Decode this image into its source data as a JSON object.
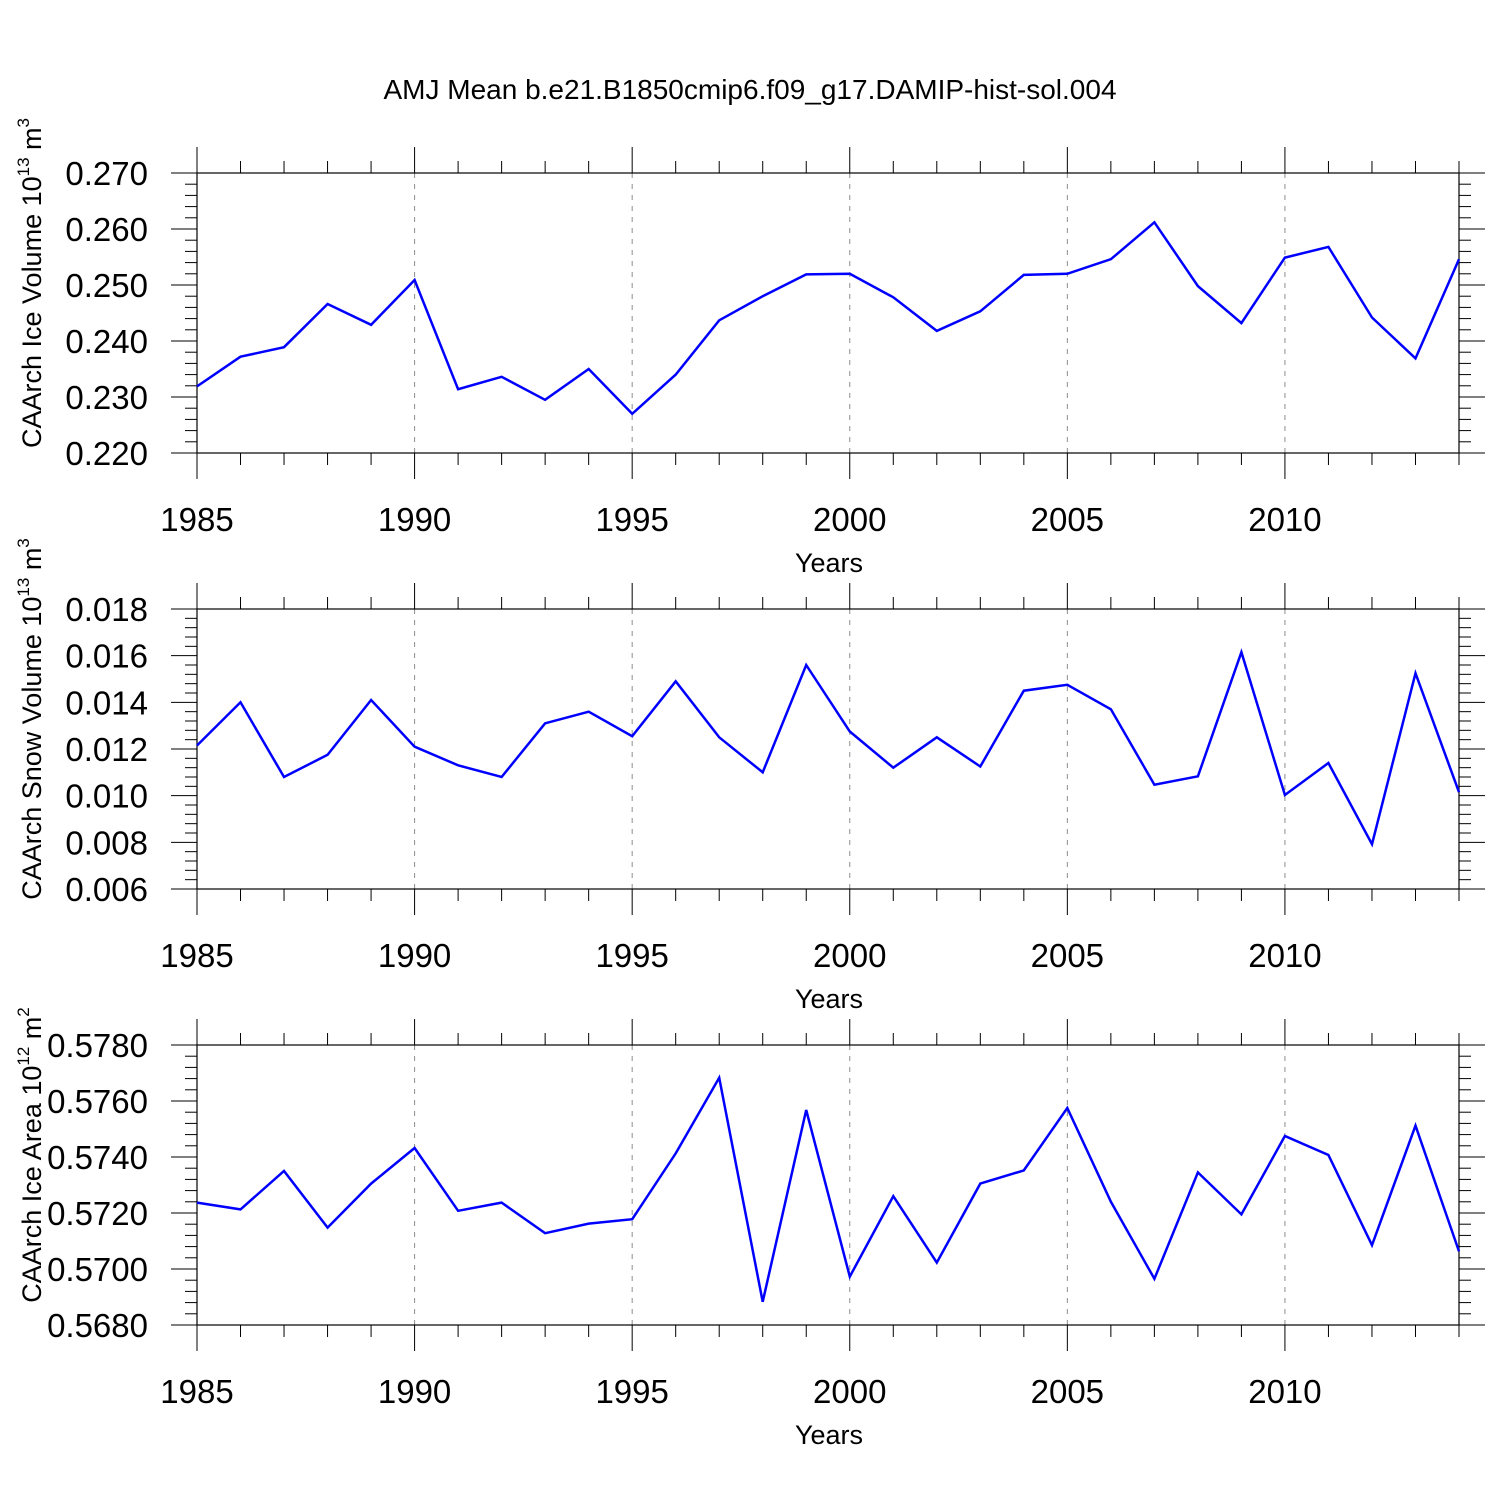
{
  "figure": {
    "title": "AMJ Mean b.e21.B1850cmip6.f09_g17.DAMIP-hist-sol.004",
    "line_color": "#0000ff",
    "grid_color": "#8c8c8c"
  },
  "chart_data": [
    {
      "type": "line",
      "title": "",
      "xlabel": "Years",
      "ylabel": "CAArch Ice Volume 10",
      "ylabel_exponent": "13",
      "ylabel_unit": " m",
      "ylabel_unit_exponent": "3",
      "xlim": [
        1985,
        2014
      ],
      "ylim": [
        0.22,
        0.27
      ],
      "x_ticks": [
        1985,
        1990,
        1995,
        2000,
        2005,
        2010
      ],
      "x_tick_labels": [
        "1985",
        "1990",
        "1995",
        "2000",
        "2005",
        "2010"
      ],
      "y_ticks": [
        0.22,
        0.23,
        0.24,
        0.25,
        0.26,
        0.27
      ],
      "y_tick_labels": [
        "0.220",
        "0.230",
        "0.240",
        "0.250",
        "0.260",
        "0.270"
      ],
      "grid": "vertical dashed at major x ticks",
      "x": [
        1985,
        1986,
        1987,
        1988,
        1989,
        1990,
        1991,
        1992,
        1993,
        1994,
        1995,
        1996,
        1997,
        1998,
        1999,
        2000,
        2001,
        2002,
        2003,
        2004,
        2005,
        2006,
        2007,
        2008,
        2009,
        2010,
        2011,
        2012,
        2013,
        2014
      ],
      "series": [
        {
          "values": [
            0.2319,
            0.2372,
            0.2389,
            0.2466,
            0.2429,
            0.2509,
            0.2314,
            0.2336,
            0.2295,
            0.235,
            0.227,
            0.234,
            0.2437,
            0.248,
            0.2519,
            0.252,
            0.2478,
            0.2418,
            0.2453,
            0.2518,
            0.252,
            0.2546,
            0.2612,
            0.2498,
            0.2432,
            0.2549,
            0.2568,
            0.2442,
            0.2369,
            0.2546
          ]
        }
      ]
    },
    {
      "type": "line",
      "title": "",
      "xlabel": "Years",
      "ylabel": "CAArch Snow Volume 10",
      "ylabel_exponent": "13",
      "ylabel_unit": " m",
      "ylabel_unit_exponent": "3",
      "xlim": [
        1985,
        2014
      ],
      "ylim": [
        0.006,
        0.018
      ],
      "x_ticks": [
        1985,
        1990,
        1995,
        2000,
        2005,
        2010
      ],
      "x_tick_labels": [
        "1985",
        "1990",
        "1995",
        "2000",
        "2005",
        "2010"
      ],
      "y_ticks": [
        0.006,
        0.008,
        0.01,
        0.012,
        0.014,
        0.016,
        0.018
      ],
      "y_tick_labels": [
        "0.006",
        "0.008",
        "0.010",
        "0.012",
        "0.014",
        "0.016",
        "0.018"
      ],
      "grid": "vertical dashed at major x ticks",
      "x": [
        1985,
        1986,
        1987,
        1988,
        1989,
        1990,
        1991,
        1992,
        1993,
        1994,
        1995,
        1996,
        1997,
        1998,
        1999,
        2000,
        2001,
        2002,
        2003,
        2004,
        2005,
        2006,
        2007,
        2008,
        2009,
        2010,
        2011,
        2012,
        2013,
        2014
      ],
      "series": [
        {
          "values": [
            0.01215,
            0.014,
            0.0108,
            0.01175,
            0.0141,
            0.0121,
            0.0113,
            0.0108,
            0.0131,
            0.0136,
            0.01255,
            0.0149,
            0.0125,
            0.011,
            0.0156,
            0.01275,
            0.0112,
            0.0125,
            0.01125,
            0.0145,
            0.01475,
            0.0137,
            0.01047,
            0.01083,
            0.01615,
            0.01003,
            0.0114,
            0.00792,
            0.01525,
            0.01015
          ]
        }
      ]
    },
    {
      "type": "line",
      "title": "",
      "xlabel": "Years",
      "ylabel": "CAArch Ice Area 10",
      "ylabel_exponent": "12",
      "ylabel_unit": " m",
      "ylabel_unit_exponent": "2",
      "xlim": [
        1985,
        2014
      ],
      "ylim": [
        0.568,
        0.578
      ],
      "x_ticks": [
        1985,
        1990,
        1995,
        2000,
        2005,
        2010
      ],
      "x_tick_labels": [
        "1985",
        "1990",
        "1995",
        "2000",
        "2005",
        "2010"
      ],
      "y_ticks": [
        0.568,
        0.57,
        0.572,
        0.574,
        0.576,
        0.578
      ],
      "y_tick_labels": [
        "0.5680",
        "0.5700",
        "0.5720",
        "0.5740",
        "0.5760",
        "0.5780"
      ],
      "grid": "vertical dashed at major x ticks",
      "x": [
        1985,
        1986,
        1987,
        1988,
        1989,
        1990,
        1991,
        1992,
        1993,
        1994,
        1995,
        1996,
        1997,
        1998,
        1999,
        2000,
        2001,
        2002,
        2003,
        2004,
        2005,
        2006,
        2007,
        2008,
        2009,
        2010,
        2011,
        2012,
        2013,
        2014
      ],
      "series": [
        {
          "values": [
            0.57237,
            0.57213,
            0.5735,
            0.57148,
            0.57305,
            0.57432,
            0.57208,
            0.57237,
            0.57128,
            0.57162,
            0.57178,
            0.57413,
            0.57683,
            0.56883,
            0.57568,
            0.56973,
            0.5726,
            0.57023,
            0.57305,
            0.57352,
            0.57575,
            0.5724,
            0.56965,
            0.57345,
            0.57195,
            0.57475,
            0.57407,
            0.57085,
            0.57512,
            0.57063
          ]
        }
      ]
    }
  ]
}
